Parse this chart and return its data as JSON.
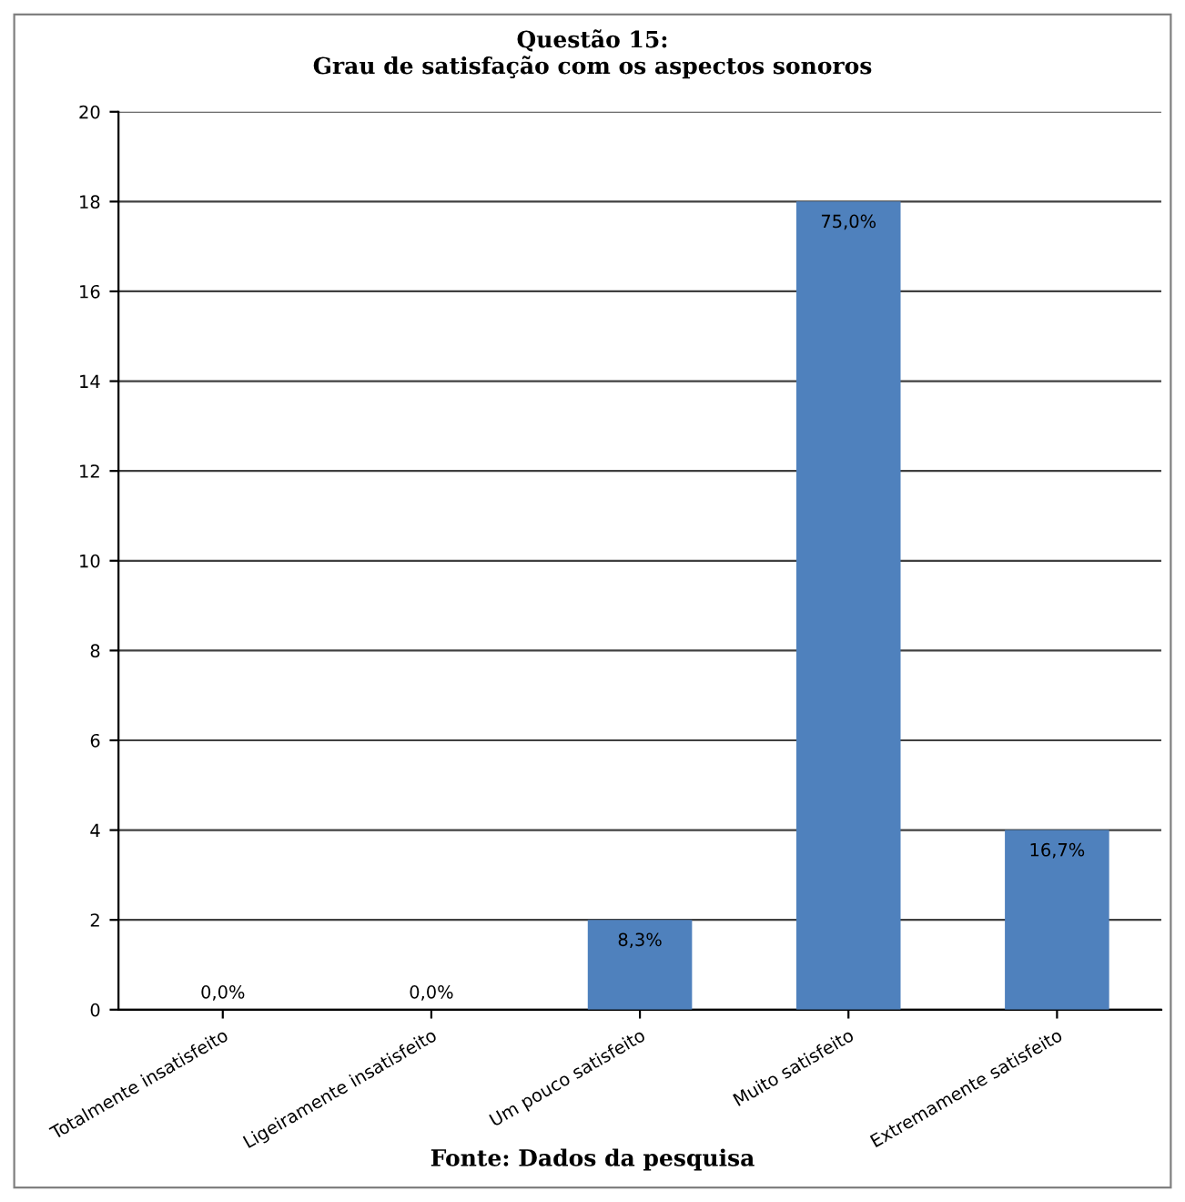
{
  "chart_data": {
    "type": "bar",
    "title": "Questão 15:\nGrau de satisfação com os aspectos sonoros",
    "categories": [
      "Totalmente insatisfeito",
      "Ligeiramente insatisfeito",
      "Um pouco satisfeito",
      "Muito satisfeito",
      "Extremamente satisfeito"
    ],
    "values": [
      0,
      0,
      2,
      18,
      4
    ],
    "color": "#4f81bd",
    "ylim": [
      0,
      20
    ],
    "yticks": [
      0,
      2,
      4,
      6,
      8,
      10,
      12,
      14,
      16,
      18,
      20
    ],
    "grid": "y",
    "annotations": [
      "Fonte: Dados da pesquisa",
      {
        "text": "0,0%",
        "x": "Totalmente insatisfeito",
        "y": 0
      },
      {
        "text": "0,0%",
        "x": "Ligeiramente insatisfeito",
        "y": 0
      },
      {
        "text": "8,3%",
        "x": "Um pouco satisfeito",
        "y": 2
      },
      {
        "text": "75,0%",
        "x": "Muito satisfeito",
        "y": 18
      },
      {
        "text": "16,7%",
        "x": "Extremamente satisfeito",
        "y": 4
      }
    ]
  }
}
